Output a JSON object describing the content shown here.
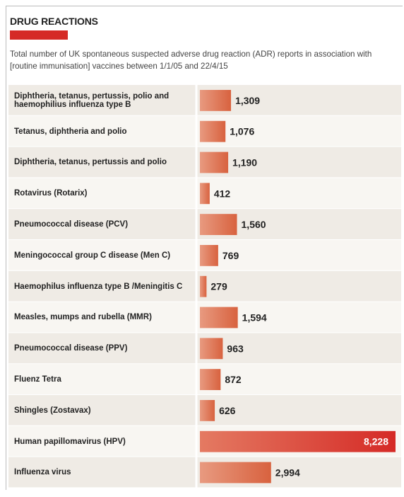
{
  "chart_data": {
    "type": "bar",
    "title": "DRUG REACTIONS",
    "subtitle": "Total number of UK spontaneous suspected adverse drug reaction (ADR) reports in association with [routine immunisation] vaccines between 1/1/05 and 22/4/15",
    "categories": [
      "Diphtheria, tetanus, pertussis, polio and haemophilius influenza type B",
      "Tetanus, diphtheria and polio",
      "Diphtheria, tetanus, pertussis and polio",
      "Rotavirus (Rotarix)",
      "Pneumococcal disease (PCV)",
      "Meningococcal group C disease (Men C)",
      "Haemophilus influenza type B /Meningitis C",
      "Measles, mumps and rubella (MMR)",
      "Pneumococcal disease (PPV)",
      "Fluenz Tetra",
      "Shingles (Zostavax)",
      "Human papillomavirus (HPV)",
      "Influenza virus"
    ],
    "values": [
      1309,
      1076,
      1190,
      412,
      1560,
      769,
      279,
      1594,
      963,
      872,
      626,
      8228,
      2994
    ],
    "value_labels": [
      "1,309",
      "1,076",
      "1,190",
      "412",
      "1,560",
      "769",
      "279",
      "1,594",
      "963",
      "872",
      "626",
      "8,228",
      "2,994"
    ],
    "color": "#e07456",
    "highlight_color": "#d52a26"
  }
}
